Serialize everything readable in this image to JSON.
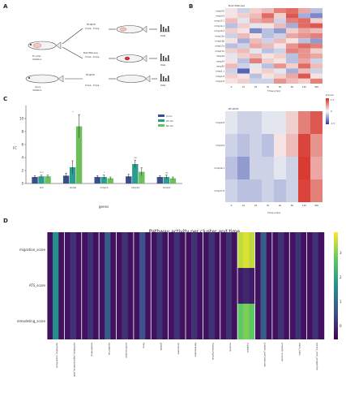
{
  "panel_labels": {
    "a": "A",
    "b": "B",
    "c": "C",
    "d": "D"
  },
  "schematic": {
    "fish_a_label": "Fin amp",
    "fish_a_sub": "Initiation",
    "branch_top": [
      "RT-qPCR",
      "0 hpa - 6 hpa"
    ],
    "branch_mid": [
      "Bulk RNA-seq",
      "0 hpa - 6 hpa"
    ],
    "fish_b_label": "Injury",
    "fish_b_sub": "Initiation",
    "branch_bot": [
      "RT-qPCR",
      "0 hpa - 6 hpa"
    ],
    "result_label": "Data"
  },
  "heatmap_rnaseq": {
    "title": "Bulk RNA-seq",
    "rows": [
      "mmp9.8",
      "mmp9.9",
      "mmp13.1",
      "mmp14.1",
      "mmp14.2",
      "mmp15a",
      "mmp16b",
      "mmp17a",
      "mmp17b",
      "mmp19",
      "mmp24",
      "mmp30",
      "mmp1.1",
      "mmp1.8",
      "mmp2.8"
    ],
    "cols": [
      "0",
      "10",
      "20",
      "30",
      "40",
      "60",
      "120",
      "360"
    ],
    "xlabel": "Time (min)",
    "colorbar_title": "Z-score",
    "colorbar_ticks": [
      "1.5",
      "0",
      "-1.5"
    ]
  },
  "heatmap_qpcr": {
    "title": "RT-qPCR",
    "rows": [
      "mmp9.8",
      "mmp9.9",
      "mmp14.1",
      "mmp17.8"
    ],
    "cols": [
      "0",
      "10",
      "20",
      "30",
      "40",
      "60",
      "120",
      "360"
    ],
    "xlabel": "Time (min)"
  },
  "chart_data": [
    {
      "type": "bar",
      "categories": [
        "itch",
        "mmp9",
        "mmp13",
        "mmp14",
        "mmp17"
      ],
      "series": [
        {
          "name": "0 min",
          "color": "#3a4e8c",
          "values": [
            1.0,
            1.2,
            1.0,
            1.1,
            1.0
          ]
        },
        {
          "name": "20 min",
          "color": "#2a9d8f",
          "values": [
            1.1,
            2.5,
            1.0,
            3.0,
            1.0
          ]
        },
        {
          "name": "60 min",
          "color": "#6dbf5a",
          "values": [
            1.1,
            8.8,
            0.8,
            1.8,
            0.8
          ]
        }
      ],
      "errors": [
        [
          0.2,
          0.4,
          0.2,
          0.3,
          0.2
        ],
        [
          0.2,
          1.0,
          0.3,
          0.6,
          0.3
        ],
        [
          0.2,
          1.8,
          0.2,
          0.6,
          0.2
        ]
      ],
      "ylabel": "FC",
      "xlabel": "genes",
      "ylim": [
        0,
        12
      ],
      "yticks": [
        0,
        2,
        4,
        6,
        8,
        10
      ],
      "sig_marks": [
        "****",
        "*",
        "*",
        "ns",
        "ns"
      ]
    },
    {
      "type": "heatmap",
      "title": "Pathway activity per cluster and time",
      "rows": [
        "migration_score",
        "ATS_score",
        "remodeling_score"
      ],
      "cols": [
        "epithelial_superficial",
        "epithelial_regenerative_wall",
        "endothelial",
        "epidermal",
        "erythrocytes",
        "fibro",
        "goblet",
        "ionocytes",
        "keratocytes",
        "mesenchymal",
        "muscle",
        "myeloid",
        "pvastc_perivascular",
        "smooth muscle",
        "stem_cells",
        "sprout_root_progenitor"
      ],
      "colorbar_ticks": [
        "3",
        "2",
        "1",
        "0"
      ]
    }
  ]
}
